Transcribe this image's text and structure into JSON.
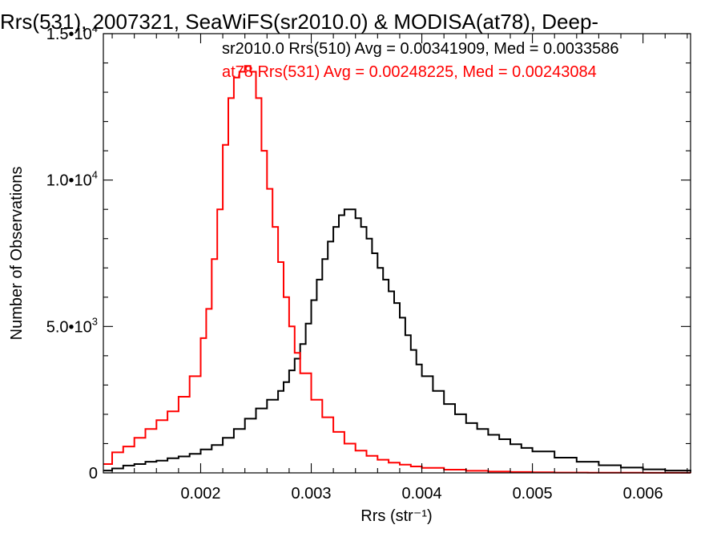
{
  "title": "Rrs(531), 2007321, SeaWiFS(sr2010.0) & MODISA(at78), Deep-",
  "colors": {
    "series_black": "#000000",
    "series_red": "#ff0000",
    "axis": "#000000"
  },
  "chart_data": {
    "type": "line",
    "title": "Rrs(531), 2007321, SeaWiFS(sr2010.0) & MODISA(at78), Deep-",
    "xlabel": "Rrs (str⁻¹)",
    "ylabel": "Number of Observations",
    "xlim": [
      0.00112,
      0.00643
    ],
    "ylim": [
      0,
      15000
    ],
    "x_ticks": [
      {
        "value": 0.002,
        "label": "0.002"
      },
      {
        "value": 0.003,
        "label": "0.003"
      },
      {
        "value": 0.004,
        "label": "0.004"
      },
      {
        "value": 0.005,
        "label": "0.005"
      },
      {
        "value": 0.006,
        "label": "0.006"
      }
    ],
    "y_ticks": [
      {
        "value": 0,
        "label": "0"
      },
      {
        "value": 5000,
        "label": "5.0•103"
      },
      {
        "value": 10000,
        "label": "1.0•104"
      },
      {
        "value": 15000,
        "label": "1.5•104"
      }
    ],
    "y_tick_mantissas": [
      "0",
      "5.0•10",
      "1.0•10",
      "1.5•10"
    ],
    "y_tick_exponents": [
      "",
      "3",
      "4",
      "4"
    ],
    "legend_lines": [
      {
        "text": "sr2010.0 Rrs(510) Avg = 0.00341909, Med = 0.0033586",
        "color": "#000000"
      },
      {
        "text": "at78 Rrs(531) Avg = 0.00248225, Med = 0.00243084",
        "color": "#ff0000"
      }
    ],
    "legend_position": "top-right",
    "series": [
      {
        "name": "sr2010.0 Rrs(510)",
        "color": "#000000",
        "x": [
          0.00112,
          0.0012,
          0.0013,
          0.0014,
          0.0015,
          0.0016,
          0.0017,
          0.0018,
          0.0019,
          0.002,
          0.0021,
          0.0022,
          0.0023,
          0.0024,
          0.0025,
          0.0026,
          0.0027,
          0.00275,
          0.0028,
          0.00285,
          0.0029,
          0.00295,
          0.003,
          0.00305,
          0.0031,
          0.00315,
          0.0032,
          0.00325,
          0.0033,
          0.00335,
          0.0034,
          0.00345,
          0.0035,
          0.00355,
          0.0036,
          0.00365,
          0.0037,
          0.00375,
          0.0038,
          0.00385,
          0.0039,
          0.00395,
          0.004,
          0.0041,
          0.0042,
          0.0043,
          0.0044,
          0.0045,
          0.0046,
          0.0047,
          0.0048,
          0.0049,
          0.005,
          0.0052,
          0.0054,
          0.0056,
          0.0058,
          0.006,
          0.0062,
          0.00643
        ],
        "values": [
          80,
          150,
          250,
          300,
          380,
          420,
          500,
          560,
          650,
          800,
          950,
          1200,
          1500,
          1850,
          2200,
          2500,
          2800,
          3100,
          3500,
          3900,
          4400,
          5100,
          5900,
          6600,
          7300,
          7900,
          8400,
          8800,
          9000,
          9000,
          8700,
          8400,
          8000,
          7500,
          7000,
          6600,
          6200,
          5800,
          5300,
          4700,
          4200,
          3700,
          3300,
          2800,
          2350,
          2000,
          1700,
          1500,
          1300,
          1150,
          980,
          850,
          730,
          520,
          380,
          260,
          180,
          120,
          80,
          40
        ]
      },
      {
        "name": "at78 Rrs(531)",
        "color": "#ff0000",
        "x": [
          0.00112,
          0.0012,
          0.0013,
          0.0014,
          0.0015,
          0.0016,
          0.0017,
          0.0018,
          0.0019,
          0.002,
          0.00205,
          0.0021,
          0.00215,
          0.0022,
          0.00225,
          0.0023,
          0.00235,
          0.0024,
          0.00245,
          0.0025,
          0.00255,
          0.0026,
          0.00265,
          0.0027,
          0.00275,
          0.0028,
          0.00285,
          0.0029,
          0.003,
          0.0031,
          0.0032,
          0.0033,
          0.0034,
          0.0035,
          0.0036,
          0.0037,
          0.0038,
          0.0039,
          0.004,
          0.0042,
          0.0044,
          0.0046,
          0.0048,
          0.005,
          0.0052,
          0.0055,
          0.006,
          0.00643
        ],
        "values": [
          300,
          700,
          900,
          1200,
          1500,
          1800,
          2100,
          2600,
          3300,
          4600,
          5600,
          7300,
          9000,
          11200,
          12800,
          13500,
          13700,
          13900,
          13700,
          12800,
          11000,
          9700,
          8400,
          7200,
          6000,
          5000,
          4100,
          3400,
          2500,
          1900,
          1400,
          1000,
          760,
          580,
          450,
          350,
          280,
          220,
          170,
          110,
          70,
          45,
          30,
          20,
          10,
          5,
          2,
          0
        ]
      }
    ]
  }
}
